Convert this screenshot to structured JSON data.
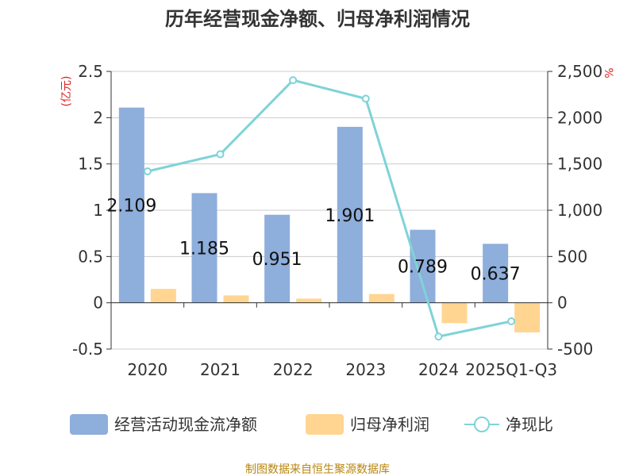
{
  "chart_data": {
    "type": "bar",
    "title": "历年经营现金净额、归母净利润情况",
    "categories": [
      "2020",
      "2021",
      "2022",
      "2023",
      "2024",
      "2025Q1-Q3"
    ],
    "series": [
      {
        "name": "经营活动现金流净额",
        "type": "bar",
        "axis": "left",
        "color": "#8eaedb",
        "values": [
          2.109,
          1.185,
          0.951,
          1.901,
          0.789,
          0.637
        ],
        "labels": [
          "2.109",
          "1.185",
          "0.951",
          "1.901",
          "0.789",
          "0.637"
        ]
      },
      {
        "name": "归母净利润",
        "type": "bar",
        "axis": "left",
        "color": "#ffd591",
        "values": [
          0.15,
          0.08,
          0.045,
          0.095,
          -0.22,
          -0.32
        ]
      },
      {
        "name": "净现比",
        "type": "line",
        "axis": "right",
        "color": "#7fd3d8",
        "values": [
          1420,
          1605,
          2405,
          2205,
          -365,
          -200
        ]
      }
    ],
    "ylabel": "(亿元)",
    "y2label": "%",
    "ylim": [
      -0.5,
      2.5
    ],
    "y2lim": [
      -500,
      2500
    ],
    "yticks": [
      "2.5",
      "2",
      "1.5",
      "1",
      "0.5",
      "0",
      "-0.5"
    ],
    "y2ticks": [
      "2,500",
      "2,000",
      "1,500",
      "1,000",
      "500",
      "0",
      "-500"
    ],
    "grid": true,
    "legend_position": "bottom"
  },
  "footer": {
    "source": "制图数据来自恒生聚源数据库"
  }
}
